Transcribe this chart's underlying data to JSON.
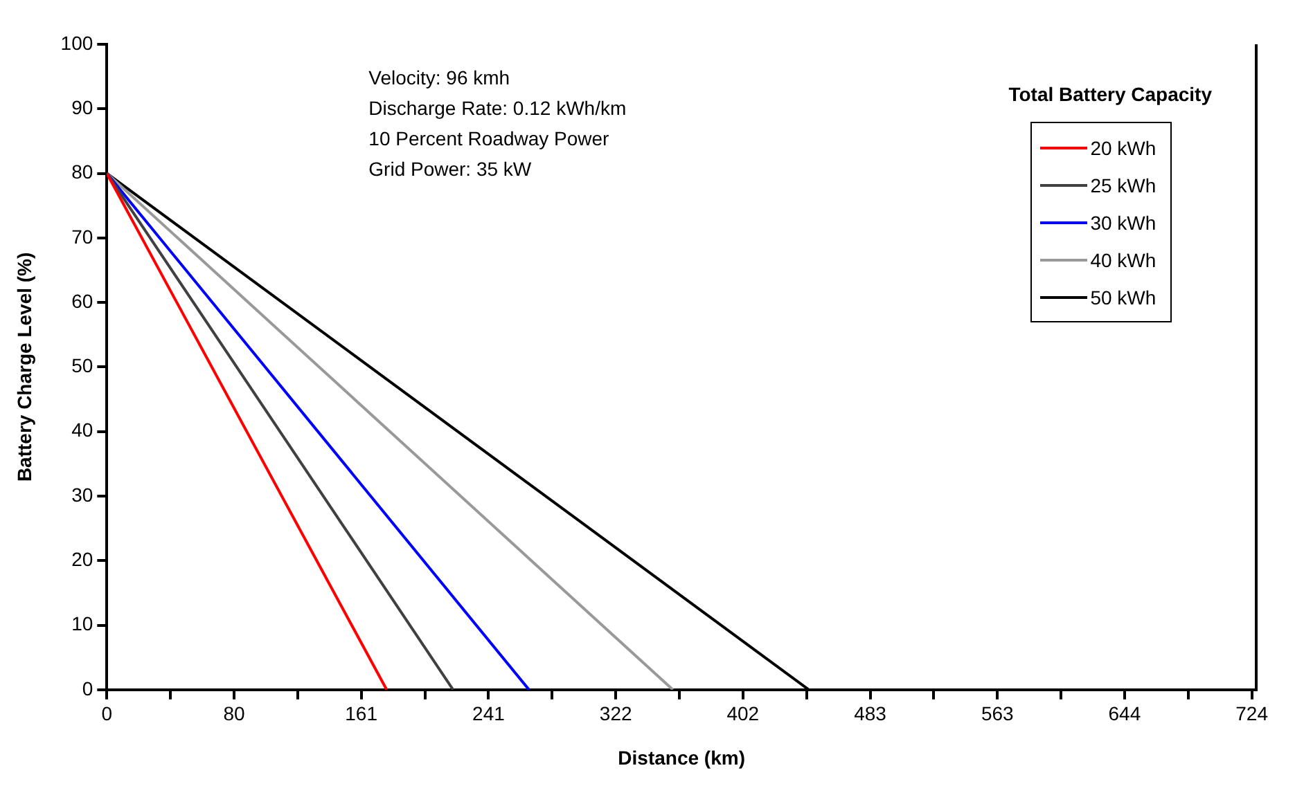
{
  "chart_data": {
    "type": "line",
    "xlabel": "Distance (km)",
    "ylabel": "Battery Charge Level (%)",
    "legend_title": "Total Battery Capacity",
    "legend": "top right",
    "grid": false,
    "marker": "none",
    "line_style": "solid",
    "annotations": [
      "Velocity: 96 kmh",
      "Discharge Rate: 0.12 kWh/km",
      "10 Percent Roadway Power",
      "Grid Power: 35 kW"
    ],
    "xlim": [
      0,
      727
    ],
    "ylim": [
      0,
      100
    ],
    "xticks": [
      0,
      {
        "value": 40.2,
        "label": null
      },
      {
        "value": 80.5,
        "label": "80"
      },
      {
        "value": 120.7,
        "label": null
      },
      {
        "value": 160.9,
        "label": "161"
      },
      {
        "value": 201.2,
        "label": null
      },
      {
        "value": 241.4,
        "label": "241"
      },
      {
        "value": 281.6,
        "label": null
      },
      {
        "value": 321.9,
        "label": "322"
      },
      {
        "value": 362.1,
        "label": null
      },
      {
        "value": 402.3,
        "label": "402"
      },
      {
        "value": 442.6,
        "label": null
      },
      {
        "value": 482.8,
        "label": "483"
      },
      {
        "value": 523.0,
        "label": null
      },
      {
        "value": 563.3,
        "label": "563"
      },
      {
        "value": 603.5,
        "label": null
      },
      {
        "value": 643.7,
        "label": "644"
      },
      {
        "value": 684.0,
        "label": null
      },
      {
        "value": 724.2,
        "label": "724"
      }
    ],
    "yticks": [
      0,
      10,
      20,
      30,
      40,
      50,
      60,
      70,
      80,
      90,
      100
    ],
    "series": [
      {
        "name": "20 kWh",
        "color": "#ff0000",
        "x": [
          0,
          177
        ],
        "values": [
          80,
          0
        ]
      },
      {
        "name": "25 kWh",
        "color": "#404040",
        "x": [
          0,
          219
        ],
        "values": [
          80,
          0
        ]
      },
      {
        "name": "30 kWh",
        "color": "#0000ff",
        "x": [
          0,
          267
        ],
        "values": [
          80,
          0
        ]
      },
      {
        "name": "40 kWh",
        "color": "#999999",
        "x": [
          0,
          358
        ],
        "values": [
          80,
          0
        ]
      },
      {
        "name": "50 kWh",
        "color": "#000000",
        "x": [
          0,
          444
        ],
        "values": [
          80,
          0
        ]
      }
    ]
  }
}
